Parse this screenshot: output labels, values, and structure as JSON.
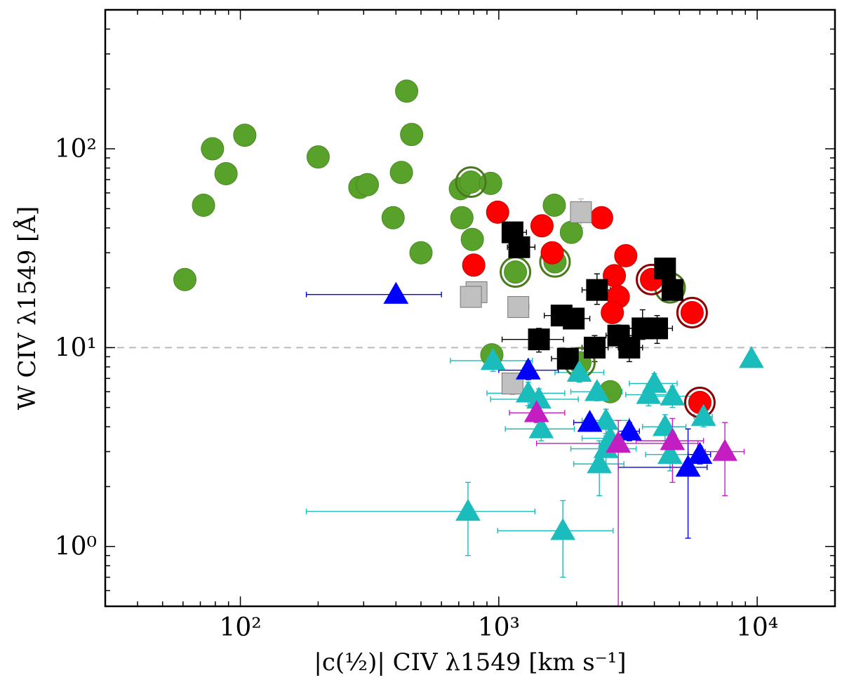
{
  "chart_data": {
    "type": "scatter",
    "title": "",
    "xlabel": "|c(½)| CIV λ1549 [km s⁻¹]",
    "ylabel": "W CIV λ1549 [Å]",
    "xscale": "log",
    "yscale": "log",
    "xlim": [
      30,
      20000
    ],
    "ylim": [
      0.5,
      500
    ],
    "grid": false,
    "legend": "none",
    "x_tick_labels": [
      "10²",
      "10³",
      "10⁴"
    ],
    "x_tick_values": [
      100,
      1000,
      10000
    ],
    "y_tick_labels": [
      "10⁰",
      "10¹",
      "10²"
    ],
    "y_tick_values": [
      1,
      10,
      100
    ],
    "reference_line": {
      "y": 10,
      "style": "dashed",
      "color": "#bbbbbb"
    },
    "series": [
      {
        "marker": "circle",
        "color": "#58a12a",
        "points": [
          {
            "x": 61,
            "y": 22
          },
          {
            "x": 72,
            "y": 52
          },
          {
            "x": 78,
            "y": 100
          },
          {
            "x": 88,
            "y": 75
          },
          {
            "x": 104,
            "y": 117
          },
          {
            "x": 200,
            "y": 91
          },
          {
            "x": 290,
            "y": 64
          },
          {
            "x": 310,
            "y": 66
          },
          {
            "x": 390,
            "y": 45
          },
          {
            "x": 420,
            "y": 76
          },
          {
            "x": 440,
            "y": 195
          },
          {
            "x": 460,
            "y": 118
          },
          {
            "x": 500,
            "y": 30
          },
          {
            "x": 710,
            "y": 63
          },
          {
            "x": 720,
            "y": 45
          },
          {
            "x": 790,
            "y": 35
          },
          {
            "x": 780,
            "y": 68
          },
          {
            "x": 930,
            "y": 67
          },
          {
            "x": 1160,
            "y": 24
          },
          {
            "x": 1640,
            "y": 52
          },
          {
            "x": 1650,
            "y": 27
          },
          {
            "x": 1910,
            "y": 38
          },
          {
            "x": 2060,
            "y": 8.4
          },
          {
            "x": 2700,
            "y": 6.0
          },
          {
            "x": 940,
            "y": 9.2
          }
        ]
      },
      {
        "marker": "circle-ringed",
        "color": "#58a12a",
        "ring_color": "#4a7a1e",
        "points": [
          {
            "x": 780,
            "y": 68
          },
          {
            "x": 1160,
            "y": 24
          },
          {
            "x": 1650,
            "y": 27
          },
          {
            "x": 2060,
            "y": 8.4
          },
          {
            "x": 4600,
            "y": 20
          }
        ]
      },
      {
        "marker": "circle",
        "color": "#ff0000",
        "points": [
          {
            "x": 990,
            "y": 48
          },
          {
            "x": 800,
            "y": 26
          },
          {
            "x": 1470,
            "y": 41
          },
          {
            "x": 1610,
            "y": 30
          },
          {
            "x": 2500,
            "y": 45
          },
          {
            "x": 2800,
            "y": 23
          },
          {
            "x": 2900,
            "y": 18
          },
          {
            "x": 3100,
            "y": 29
          },
          {
            "x": 2750,
            "y": 15
          },
          {
            "x": 3900,
            "y": 22
          },
          {
            "x": 5600,
            "y": 15
          },
          {
            "x": 6000,
            "y": 5.3
          }
        ]
      },
      {
        "marker": "circle-ringed",
        "color": "#ff0000",
        "ring_color": "#8b0000",
        "points": [
          {
            "x": 3900,
            "y": 22
          },
          {
            "x": 5600,
            "y": 15
          },
          {
            "x": 6000,
            "y": 5.3
          }
        ]
      },
      {
        "marker": "square",
        "color": "#000000",
        "points": [
          {
            "x": 1130,
            "y": 38,
            "xerr": [
              90,
              150
            ],
            "yerr": [
              3,
              3
            ]
          },
          {
            "x": 1200,
            "y": 32,
            "xerr": [
              120,
              180
            ],
            "yerr": [
              3,
              3
            ]
          },
          {
            "x": 1750,
            "y": 14.5,
            "xerr": [
              250,
              300
            ],
            "yerr": [
              1.5,
              1.5
            ]
          },
          {
            "x": 1950,
            "y": 14,
            "xerr": [
              250,
              300
            ],
            "yerr": [
              1.5,
              1.5
            ]
          },
          {
            "x": 1430,
            "y": 11,
            "xerr": [
              400,
              350
            ],
            "yerr": [
              1.5,
              1.5
            ]
          },
          {
            "x": 1850,
            "y": 8.8,
            "xerr": [
              250,
              300
            ],
            "yerr": [
              1,
              1
            ]
          },
          {
            "x": 2400,
            "y": 19.5,
            "xerr": [
              300,
              300
            ],
            "yerr": [
              3,
              4
            ]
          },
          {
            "x": 2350,
            "y": 10,
            "xerr": [
              250,
              300
            ],
            "yerr": [
              1.5,
              1.5
            ]
          },
          {
            "x": 2900,
            "y": 11.5,
            "xerr": [
              300,
              400
            ],
            "yerr": [
              1.5,
              1.5
            ]
          },
          {
            "x": 3200,
            "y": 10,
            "xerr": [
              300,
              400
            ],
            "yerr": [
              1.5,
              2.5
            ]
          },
          {
            "x": 3600,
            "y": 12.5,
            "xerr": [
              400,
              500
            ],
            "yerr": [
              1.5,
              3
            ]
          },
          {
            "x": 4100,
            "y": 12.5,
            "xerr": [
              500,
              600
            ],
            "yerr": [
              2,
              2
            ]
          },
          {
            "x": 4400,
            "y": 25,
            "xerr": [
              300,
              300
            ],
            "yerr": [
              3,
              3
            ]
          },
          {
            "x": 4700,
            "y": 19.5,
            "xerr": [
              300,
              300
            ],
            "yerr": [
              2,
              2
            ]
          }
        ]
      },
      {
        "marker": "square",
        "color": "#c0c0c0",
        "points": [
          {
            "x": 820,
            "y": 19,
            "xerr": [
              70,
              80
            ],
            "yerr": [
              2,
              2
            ]
          },
          {
            "x": 780,
            "y": 18,
            "xerr": [
              60,
              70
            ],
            "yerr": [
              2,
              2
            ]
          },
          {
            "x": 1190,
            "y": 16,
            "xerr": [
              100,
              120
            ],
            "yerr": [
              1.5,
              1.5
            ]
          },
          {
            "x": 1130,
            "y": 6.6,
            "xerr": [
              100,
              100
            ],
            "yerr": [
              0.8,
              0.8
            ]
          },
          {
            "x": 2080,
            "y": 48,
            "xerr": [
              150,
              200
            ],
            "yerr": [
              8,
              8
            ]
          }
        ]
      },
      {
        "marker": "triangle",
        "color": "#1bbcbc",
        "points": [
          {
            "x": 950,
            "y": 8.6,
            "xerr": [
              300,
              400
            ],
            "yerr": [
              1,
              1
            ]
          },
          {
            "x": 760,
            "y": 1.5,
            "xerr": [
              580,
              620
            ],
            "yerr": [
              0.6,
              0.6
            ]
          },
          {
            "x": 1770,
            "y": 1.2,
            "xerr": [
              780,
              1000
            ],
            "yerr": [
              0.5,
              0.5
            ]
          },
          {
            "x": 1300,
            "y": 5.9,
            "xerr": [
              400,
              500
            ],
            "yerr": [
              0.8,
              0.8
            ]
          },
          {
            "x": 1430,
            "y": 5.5,
            "xerr": [
              500,
              600
            ],
            "yerr": [
              0.7,
              0.7
            ]
          },
          {
            "x": 1460,
            "y": 3.9,
            "xerr": [
              400,
              500
            ],
            "yerr": [
              0.5,
              0.5
            ]
          },
          {
            "x": 2050,
            "y": 7.5,
            "xerr": [
              400,
              500
            ],
            "yerr": [
              0.8,
              0.8
            ]
          },
          {
            "x": 2400,
            "y": 6.0,
            "xerr": [
              500,
              600
            ],
            "yerr": [
              0.6,
              0.6
            ]
          },
          {
            "x": 2600,
            "y": 4.3,
            "xerr": [
              500,
              600
            ],
            "yerr": [
              0.6,
              0.6
            ]
          },
          {
            "x": 2700,
            "y": 3.5,
            "xerr": [
              600,
              700
            ],
            "yerr": [
              0.5,
              0.5
            ]
          },
          {
            "x": 2600,
            "y": 3.1,
            "xerr": [
              700,
              800
            ],
            "yerr": [
              0.5,
              0.5
            ]
          },
          {
            "x": 2450,
            "y": 2.6,
            "xerr": [
              500,
              600
            ],
            "yerr": [
              0.8,
              0.8
            ]
          },
          {
            "x": 4000,
            "y": 6.6,
            "xerr": [
              800,
              900
            ],
            "yerr": [
              0.8,
              0.8
            ]
          },
          {
            "x": 3800,
            "y": 5.8,
            "xerr": [
              700,
              800
            ],
            "yerr": [
              0.7,
              0.7
            ]
          },
          {
            "x": 4700,
            "y": 5.7,
            "xerr": [
              900,
              1000
            ],
            "yerr": [
              0.7,
              0.7
            ]
          },
          {
            "x": 4400,
            "y": 4.0,
            "xerr": [
              800,
              900
            ],
            "yerr": [
              0.6,
              0.6
            ]
          },
          {
            "x": 4600,
            "y": 2.9,
            "xerr": [
              900,
              1100
            ],
            "yerr": [
              0.5,
              0.5
            ]
          },
          {
            "x": 6200,
            "y": 4.5,
            "xerr": [
              500,
              500
            ],
            "yerr": [
              0.5,
              0.5
            ]
          },
          {
            "x": 9500,
            "y": 8.8,
            "xerr": [
              0,
              0
            ],
            "yerr": [
              0,
              0
            ]
          }
        ]
      },
      {
        "marker": "triangle",
        "color": "#0000ff",
        "points": [
          {
            "x": 400,
            "y": 18.5,
            "xerr": [
              220,
              200
            ],
            "yerr": [
              0,
              0
            ]
          },
          {
            "x": 1300,
            "y": 7.7,
            "xerr": [
              300,
              400
            ],
            "yerr": [
              0.8,
              0.8
            ]
          },
          {
            "x": 2250,
            "y": 4.2,
            "xerr": [
              300,
              300
            ],
            "yerr": [
              0.4,
              0.4
            ]
          },
          {
            "x": 3200,
            "y": 3.8,
            "xerr": [
              300,
              300
            ],
            "yerr": [
              0.4,
              0.4
            ]
          },
          {
            "x": 5400,
            "y": 2.5,
            "xerr": [
              2500,
              1000
            ],
            "yerr": [
              1.4,
              1.4
            ]
          },
          {
            "x": 6000,
            "y": 2.9,
            "xerr": [
              600,
              600
            ],
            "yerr": [
              0.3,
              0.3
            ]
          }
        ]
      },
      {
        "marker": "triangle",
        "color": "#c21ec2",
        "points": [
          {
            "x": 1400,
            "y": 4.7,
            "xerr": [
              300,
              400
            ],
            "yerr": [
              0.5,
              0.5
            ]
          },
          {
            "x": 2900,
            "y": 3.3,
            "xerr": [
              1500,
              3000
            ],
            "yerr": [
              2.9,
              1
            ]
          },
          {
            "x": 4700,
            "y": 3.4,
            "xerr": [
              1300,
              1500
            ],
            "yerr": [
              1.3,
              1
            ]
          },
          {
            "x": 7500,
            "y": 3.0,
            "xerr": [
              1200,
              1400
            ],
            "yerr": [
              1.2,
              1.2
            ]
          }
        ]
      }
    ]
  }
}
